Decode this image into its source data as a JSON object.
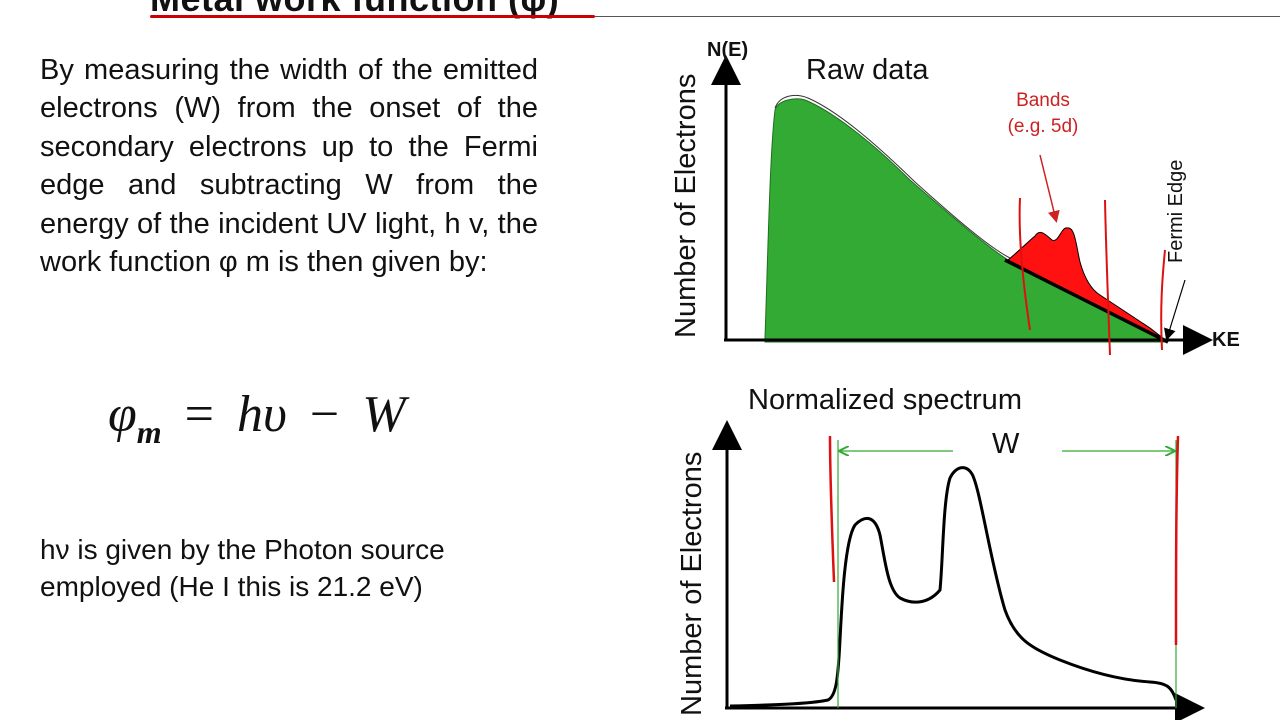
{
  "slide": {
    "title": "Metal work function (φ)",
    "paragraph": "By measuring the width of the emitted electrons (W) from the onset of the secondary electrons up to the Fermi edge and subtracting W from the energy of the incident UV light, h v, the work function φ m is then given by:",
    "formula": {
      "lhs": "φ",
      "lhs_sub": "m",
      "equals": "=",
      "term1": "hυ",
      "minus": "−",
      "term2": "W"
    },
    "note": "hν is given by the Photon source employed (He I this is 21.2 eV)"
  },
  "raw_diagram": {
    "y_axis_label": "Number of Electrons",
    "y_axis_top_label": "N(E)",
    "x_axis_label": "KE",
    "title": "Raw data",
    "bands_label_line1": "Bands",
    "bands_label_line2": "(e.g. 5d)",
    "fermi_label": "Fermi Edge",
    "colors": {
      "secondary": "#33aa33",
      "bands": "#ff1111",
      "annotation": "#cc2222"
    }
  },
  "normalized_diagram": {
    "title": "Normalized spectrum",
    "y_axis_label": "Number of Electrons",
    "width_label": "W",
    "colors": {
      "marker": "#dd2222",
      "width_arrow": "#33aa33"
    }
  }
}
